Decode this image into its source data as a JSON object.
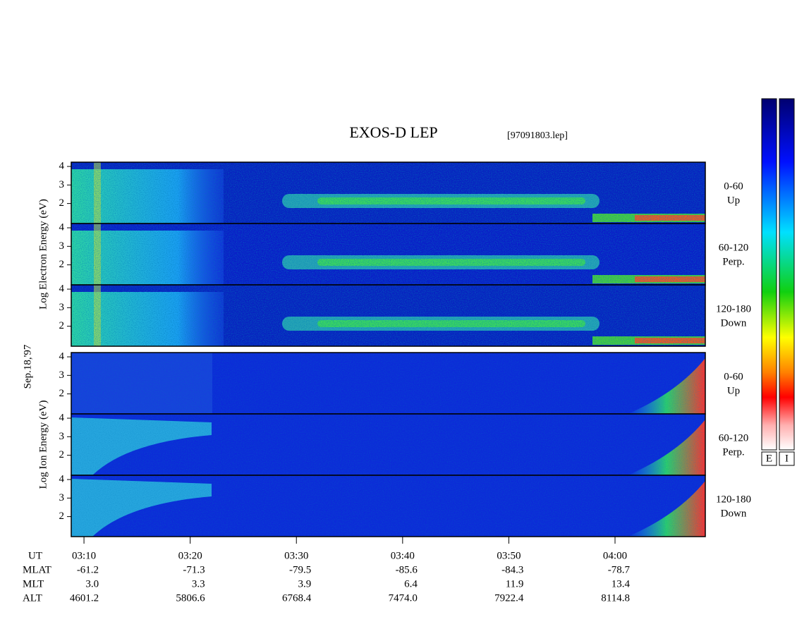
{
  "chart_data": {
    "type": "spectrogram",
    "title": "EXOS-D LEP",
    "subtitle": "[97091803.lep]",
    "date_label": "Sep.18,'97",
    "xlim": [
      188.8,
      248.5
    ],
    "xticks": [
      {
        "value": 190,
        "label": "03:10"
      },
      {
        "value": 200,
        "label": "03:20"
      },
      {
        "value": 210,
        "label": "03:30"
      },
      {
        "value": 220,
        "label": "03:40"
      },
      {
        "value": 230,
        "label": "03:50"
      },
      {
        "value": 240,
        "label": "04:00"
      }
    ],
    "ylim": [
      0.92,
      4.23
    ],
    "yticks": [
      2,
      3,
      4
    ],
    "groups": [
      {
        "ylabel": "Log Electron Energy (eV)",
        "panels": [
          {
            "range": "0-60",
            "direction": "Up"
          },
          {
            "range": "60-120",
            "direction": "Perp."
          },
          {
            "range": "120-180",
            "direction": "Down"
          }
        ]
      },
      {
        "ylabel": "Log Ion Energy (eV)",
        "panels": [
          {
            "range": "0-60",
            "direction": "Up"
          },
          {
            "range": "60-120",
            "direction": "Perp."
          },
          {
            "range": "120-180",
            "direction": "Down"
          }
        ]
      }
    ],
    "ephemeris": {
      "time_label": "UT",
      "rows": [
        {
          "name": "MLAT",
          "values": [
            "-61.2",
            "-71.3",
            "-79.5",
            "-85.6",
            "-84.3",
            "-78.7"
          ]
        },
        {
          "name": "MLT",
          "values": [
            "3.0",
            "3.3",
            "3.9",
            "6.4",
            "11.9",
            "13.4"
          ]
        },
        {
          "name": "ALT",
          "values": [
            "4601.2",
            "5806.6",
            "6768.4",
            "7474.0",
            "7922.4",
            "8114.8"
          ]
        }
      ]
    },
    "colorbars": [
      "E",
      "I"
    ]
  }
}
